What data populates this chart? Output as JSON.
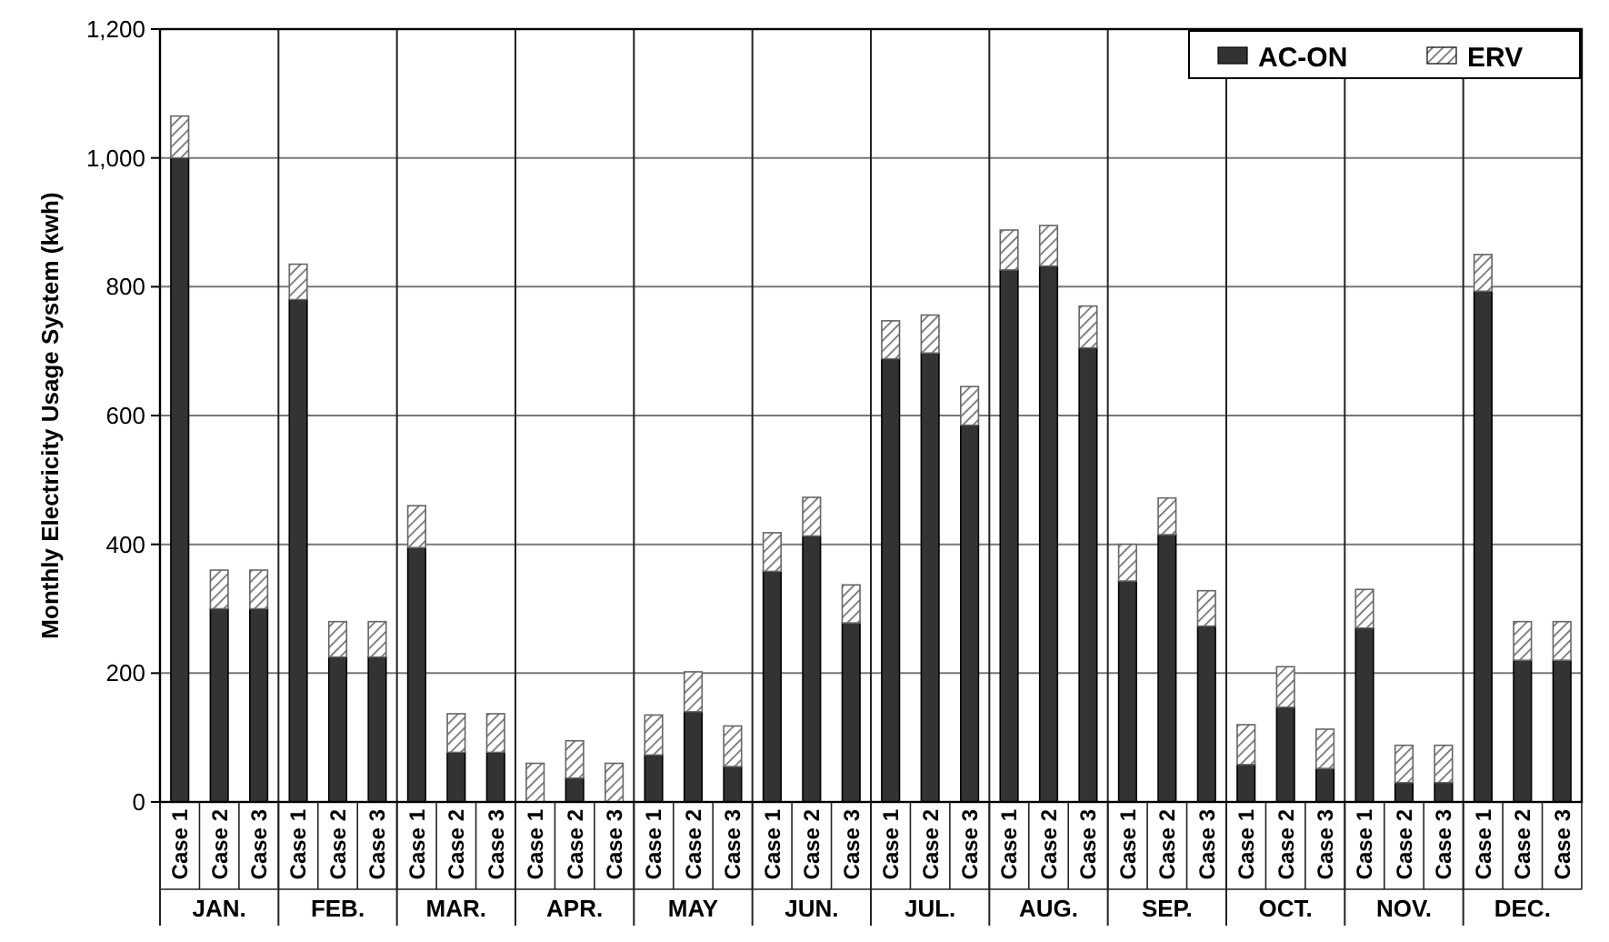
{
  "chart_data": {
    "type": "bar",
    "stacked": true,
    "ylabel": "Monthly Electricity Usage  System  (kwh)",
    "categories": [
      "Case 1",
      "Case 2",
      "Case 3",
      "Case 1",
      "Case 2",
      "Case 3",
      "Case 1",
      "Case 2",
      "Case 3",
      "Case 1",
      "Case 2",
      "Case 3",
      "Case 1",
      "Case 2",
      "Case 3",
      "Case 1",
      "Case 2",
      "Case 3",
      "Case 1",
      "Case 2",
      "Case 3",
      "Case 1",
      "Case 2",
      "Case 3",
      "Case 1",
      "Case 2",
      "Case 3",
      "Case 1",
      "Case 2",
      "Case 3",
      "Case 1",
      "Case 2",
      "Case 3",
      "Case 1",
      "Case 2",
      "Case 3"
    ],
    "annotations": [
      "JAN.",
      "FEB.",
      "MAR.",
      "APR.",
      "MAY",
      "JUN.",
      "JUL.",
      "AUG.",
      "SEP.",
      "OCT.",
      "NOV.",
      "DEC."
    ],
    "series": [
      {
        "name": "AC-ON",
        "color": "#333333",
        "values": [
          1000,
          300,
          300,
          780,
          225,
          225,
          395,
          77,
          77,
          0,
          37,
          0,
          73,
          140,
          55,
          358,
          413,
          278,
          688,
          697,
          585,
          826,
          832,
          705,
          343,
          415,
          273,
          58,
          147,
          52,
          270,
          30,
          30,
          793,
          220,
          220
        ]
      },
      {
        "name": "ERV",
        "color": "#666666",
        "values": [
          65,
          60,
          60,
          55,
          55,
          55,
          65,
          60,
          60,
          60,
          58,
          60,
          62,
          62,
          63,
          60,
          60,
          59,
          59,
          59,
          60,
          62,
          63,
          65,
          57,
          57,
          55,
          62,
          63,
          61,
          60,
          58,
          58,
          57,
          60,
          60
        ]
      }
    ],
    "ylim": [
      0,
      1200
    ],
    "yticks": [
      0,
      {
        "value": 200,
        "label": "200"
      },
      {
        "value": 400,
        "label": "400"
      },
      {
        "value": 600,
        "label": "600"
      },
      {
        "value": 800,
        "label": "800"
      },
      {
        "value": 1000,
        "label": "1,000"
      },
      {
        "value": 1200,
        "label": "1,200"
      }
    ],
    "grid": true,
    "legend": "top right"
  }
}
